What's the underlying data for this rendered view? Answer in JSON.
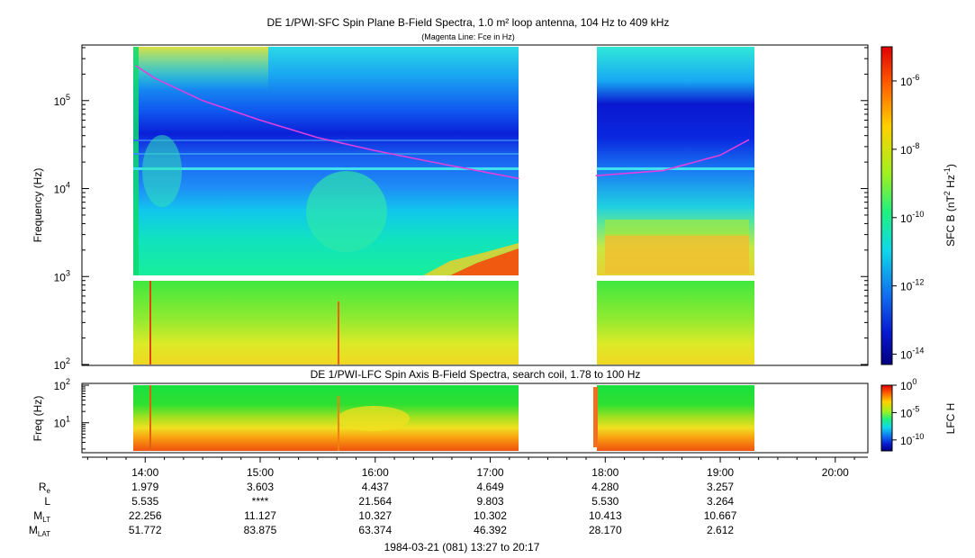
{
  "chart_data": [
    {
      "type": "heatmap",
      "title": "DE 1/PWI-SFC  Spin Plane B-Field Spectra, 1.0 m² loop antenna, 104 Hz to 409 kHz",
      "subtitle": "(Magenta Line: Fce in Hz)",
      "ylabel": "Frequency (Hz)",
      "y_scale": "log",
      "ylim": [
        100,
        409000
      ],
      "y_ticks": [
        {
          "value": 100,
          "label": "10",
          "exp": "2"
        },
        {
          "value": 1000,
          "label": "10",
          "exp": "3"
        },
        {
          "value": 10000,
          "label": "10",
          "exp": "4"
        },
        {
          "value": 100000,
          "label": "10",
          "exp": "5"
        }
      ],
      "data_coverage": [
        [
          "13:55",
          "17:15"
        ],
        [
          "17:55",
          "19:15"
        ]
      ],
      "fce_line": {
        "color": "#e040e0",
        "segments": [
          {
            "points": [
              [
                "13:55",
                250000
              ],
              [
                "14:05",
                180000
              ],
              [
                "14:30",
                100000
              ],
              [
                "15:00",
                60000
              ],
              [
                "15:30",
                38000
              ],
              [
                "16:00",
                27000
              ],
              [
                "16:30",
                20000
              ],
              [
                "17:00",
                15000
              ],
              [
                "17:15",
                13000
              ]
            ]
          },
          {
            "points": [
              [
                "17:55",
                14000
              ],
              [
                "18:30",
                16000
              ],
              [
                "19:00",
                24000
              ],
              [
                "19:15",
                36000
              ]
            ]
          }
        ]
      },
      "colorbar": {
        "label": "SFC B (nT²Hz⁻¹)",
        "scale": "log",
        "range": [
          5e-15,
          1e-05
        ],
        "ticks": [
          {
            "label": "10",
            "exp": "-6"
          },
          {
            "label": "10",
            "exp": "-8"
          },
          {
            "label": "10",
            "exp": "-10"
          },
          {
            "label": "10",
            "exp": "-12"
          },
          {
            "label": "10",
            "exp": "-14"
          }
        ]
      }
    },
    {
      "type": "heatmap",
      "title": "DE 1/PWI-LFC  Spin Axis B-Field Spectra, search coil, 1.78 to 100 Hz",
      "ylabel": "Freq (Hz)",
      "y_scale": "log",
      "ylim": [
        1.78,
        100
      ],
      "y_ticks": [
        {
          "value": 10,
          "label": "10",
          "exp": "1"
        },
        {
          "value": 100,
          "label": "10",
          "exp": "2"
        }
      ],
      "data_coverage": [
        [
          "13:55",
          "17:15"
        ],
        [
          "17:55",
          "19:15"
        ]
      ],
      "colorbar": {
        "label": "LFC H",
        "scale": "log",
        "range": [
          1e-12,
          1
        ],
        "ticks": [
          {
            "label": "10",
            "exp": "0"
          },
          {
            "label": "10",
            "exp": "-5"
          },
          {
            "label": "10",
            "exp": "-10"
          }
        ]
      }
    }
  ],
  "time_axis": {
    "range": [
      "13:27",
      "20:17"
    ],
    "ticks": [
      "14:00",
      "15:00",
      "16:00",
      "17:00",
      "18:00",
      "19:00",
      "20:00"
    ]
  },
  "ephemeris": {
    "rows": [
      {
        "label": "R",
        "sub": "e",
        "values": [
          "1.979",
          "3.603",
          "4.437",
          "4.649",
          "4.280",
          "3.257"
        ]
      },
      {
        "label": "L",
        "sub": "",
        "values": [
          "5.535",
          "****",
          "21.564",
          "9.803",
          "5.530",
          "3.264"
        ]
      },
      {
        "label": "M",
        "sub": "LT",
        "values": [
          "22.256",
          "11.127",
          "10.327",
          "10.302",
          "10.413",
          "10.667"
        ]
      },
      {
        "label": "M",
        "sub": "LAT",
        "values": [
          "51.772",
          "83.875",
          "63.374",
          "46.392",
          "28.170",
          "2.612"
        ]
      }
    ]
  },
  "footer": "1984-03-21 (081) 13:27 to 20:17"
}
